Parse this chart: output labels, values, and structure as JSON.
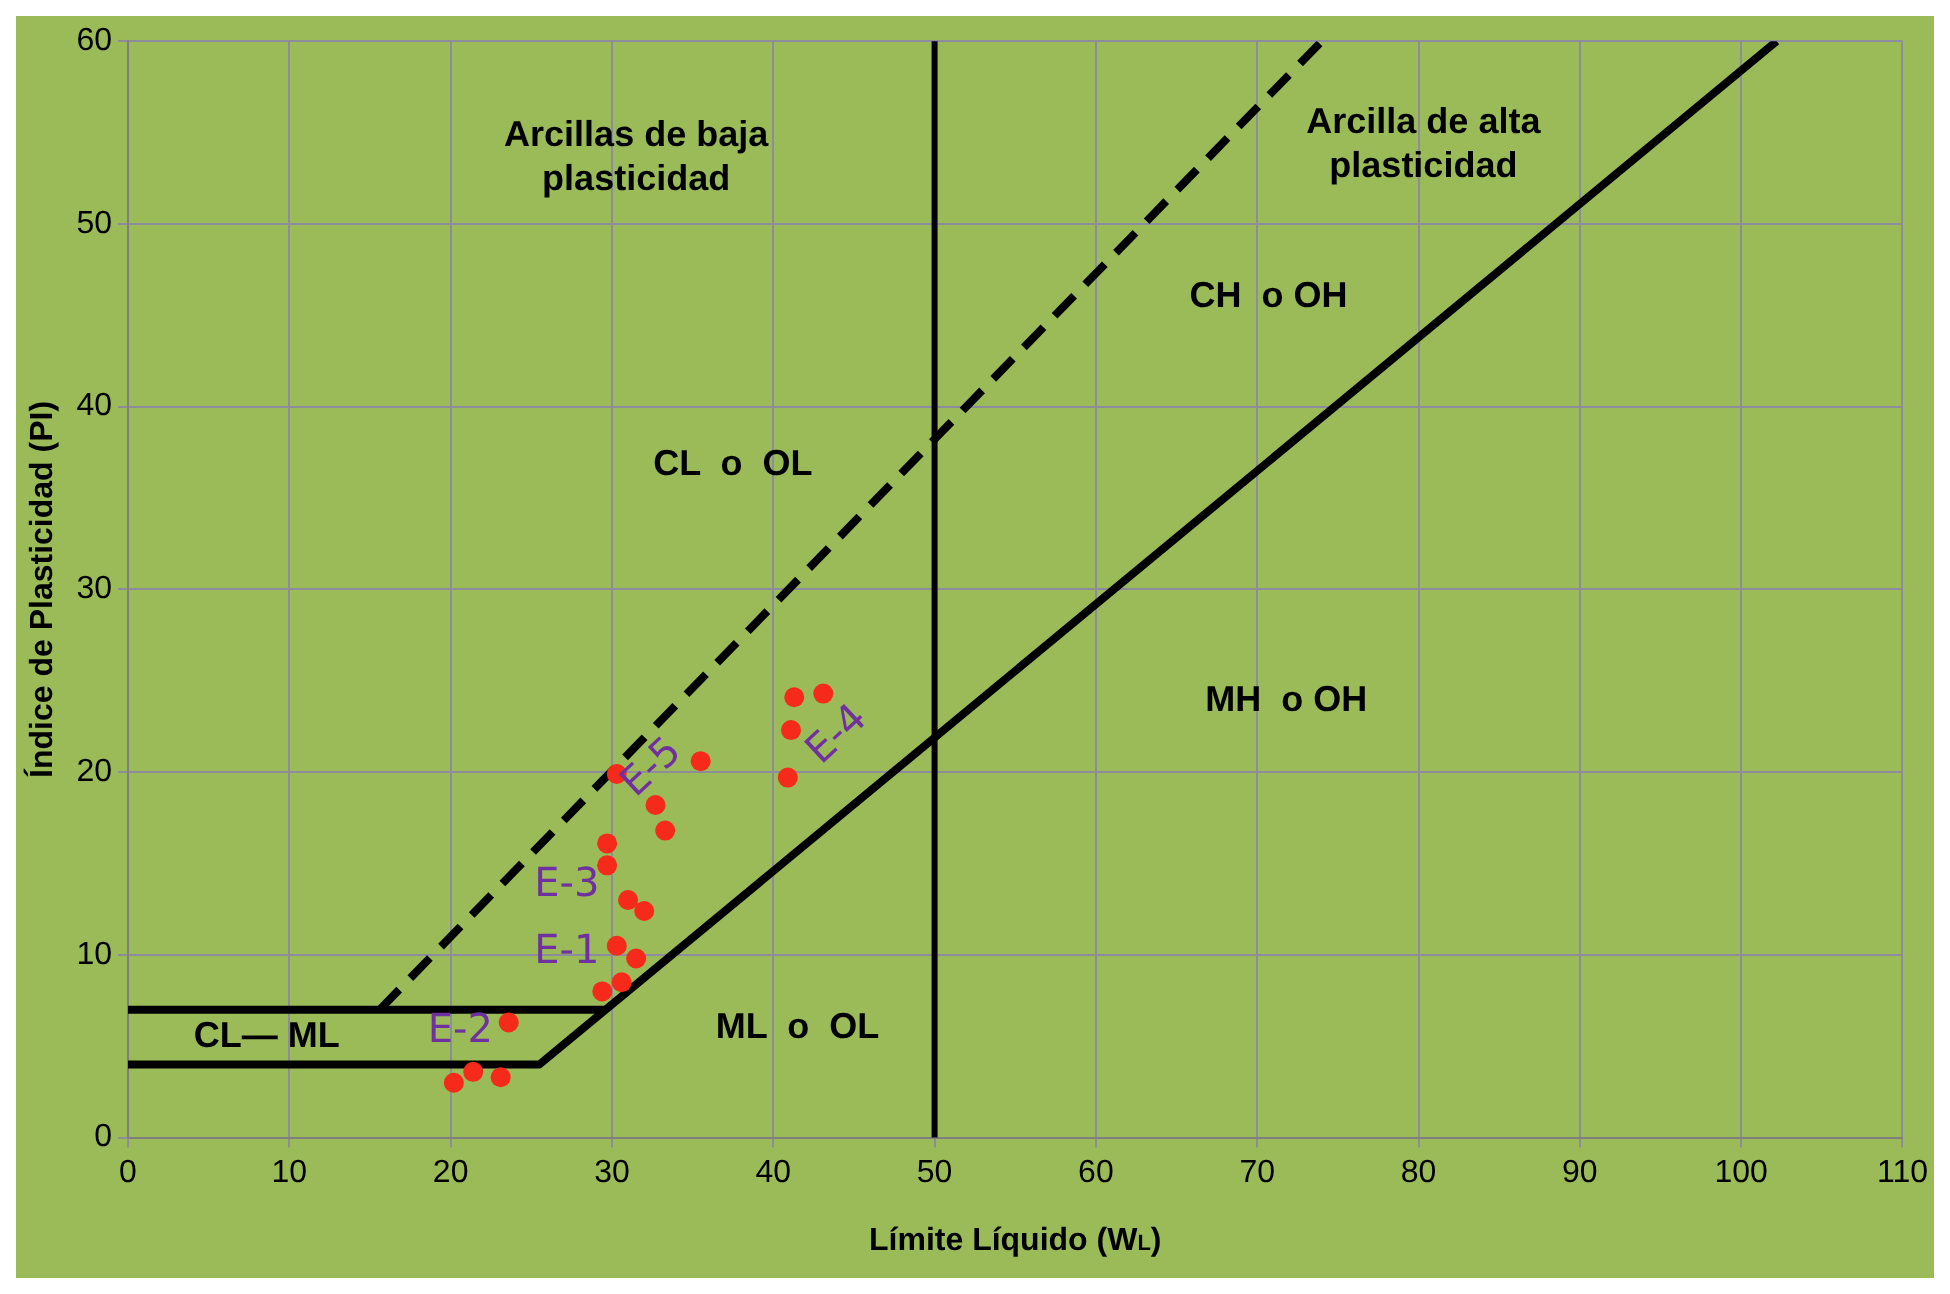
{
  "chart_data": {
    "type": "scatter",
    "xlabel": "Límite Líquido (W$_{L}$)",
    "ylabel": "Índice de Plasticidad (PI)",
    "xlim": [
      0,
      110
    ],
    "xticks": [
      0,
      10,
      20,
      30,
      40,
      50,
      60,
      70,
      80,
      90,
      100,
      110
    ],
    "ylim": [
      0,
      60
    ],
    "yticks": [
      0,
      10,
      20,
      30,
      40,
      50,
      60
    ],
    "grid": true,
    "legend": false,
    "series": [
      {
        "type": "line",
        "color": "#000000",
        "marker": "none",
        "line_style": "solid",
        "x": [
          0,
          25.5,
          102.2
        ],
        "values": [
          4,
          4,
          60
        ]
      },
      {
        "type": "line",
        "color": "#000000",
        "marker": "none",
        "line_style": "solid",
        "x": [
          0,
          29.6
        ],
        "values": [
          7,
          7
        ]
      },
      {
        "type": "line",
        "color": "#000000",
        "marker": "none",
        "line_style": "dashed",
        "x": [
          15.6,
          74
        ],
        "values": [
          7,
          60
        ]
      },
      {
        "type": "scatter",
        "color": "#f52a1a",
        "marker": "circle",
        "x": [
          30.3,
          32.7,
          33.3,
          35.5,
          29.7,
          29.7,
          31.0,
          32.0,
          30.3,
          31.5,
          29.4,
          30.6,
          23.6,
          20.2,
          21.4,
          23.1,
          41.3,
          43.1,
          41.1,
          40.9
        ],
        "values": [
          19.9,
          18.2,
          16.8,
          20.6,
          16.1,
          14.9,
          13.0,
          12.4,
          10.5,
          9.8,
          8.0,
          8.5,
          6.3,
          3.0,
          3.6,
          3.3,
          24.1,
          24.3,
          22.3,
          19.7
        ]
      }
    ],
    "ref_lines": [
      {
        "axis": "x",
        "value": 50,
        "color": "#000000",
        "line_style": "solid"
      }
    ],
    "annotations": [
      "Arcillas de baja\nplasticidad",
      "Arcilla de alta\nplasticidad",
      "CH  o OH",
      "CL  o  OL",
      "MH  o OH",
      "ML  o  OL",
      "CL— ML",
      "E-2",
      "E-1",
      "E-3",
      "E-5",
      "E-4"
    ]
  }
}
